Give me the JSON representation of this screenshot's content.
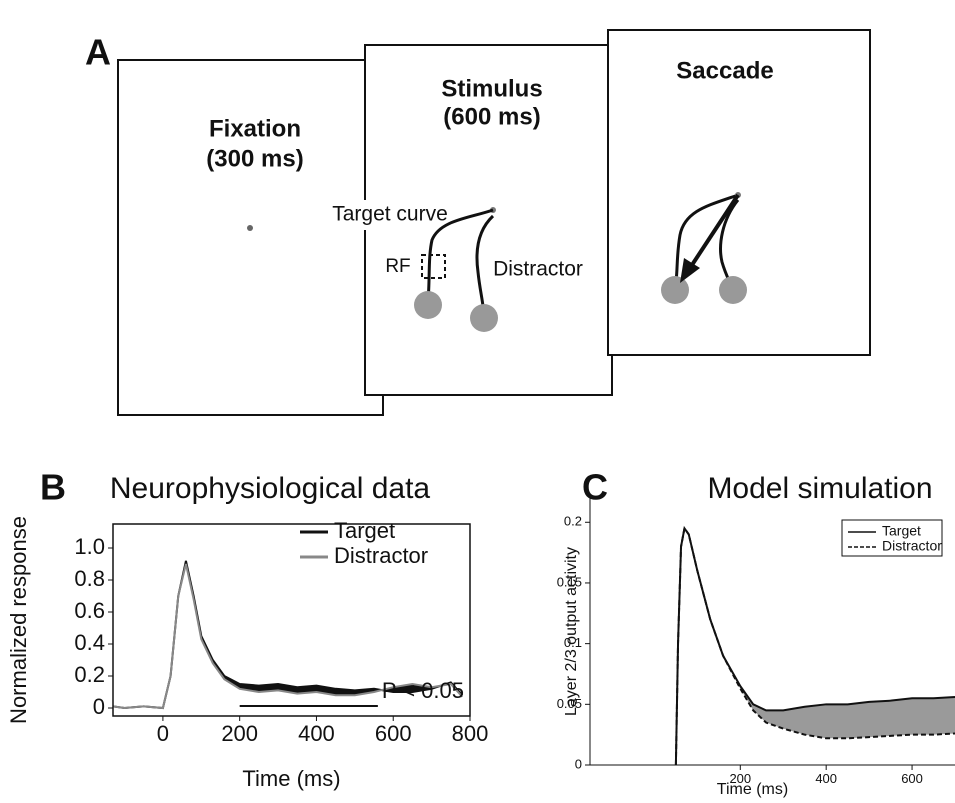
{
  "panel_a": {
    "label": "A",
    "frames": [
      {
        "title": "Fixation",
        "duration": "(300 ms)"
      },
      {
        "title": "Stimulus",
        "duration": "(600 ms)",
        "target": "Target curve",
        "rf": "RF",
        "distractor": "Distractor"
      },
      {
        "title": "Saccade"
      }
    ]
  },
  "chart_data": [
    {
      "type": "line",
      "panel_label": "B",
      "title": "Neurophysiological data",
      "xlabel": "Time (ms)",
      "ylabel": "Normalized response",
      "x": [
        -130,
        -100,
        -50,
        0,
        20,
        40,
        60,
        80,
        100,
        130,
        160,
        200,
        250,
        300,
        350,
        400,
        450,
        500,
        550,
        600,
        650,
        700,
        750,
        780
      ],
      "series": [
        {
          "name": "Target",
          "color": "#111111",
          "dash": false,
          "values": [
            0.01,
            0,
            0.01,
            0,
            0.2,
            0.7,
            0.92,
            0.7,
            0.45,
            0.3,
            0.2,
            0.15,
            0.14,
            0.15,
            0.13,
            0.14,
            0.12,
            0.11,
            0.12,
            0.1,
            0.1,
            0.12,
            0.16,
            0.08
          ]
        },
        {
          "name": "Distractor",
          "color": "#888888",
          "dash": false,
          "values": [
            0.01,
            0,
            0.01,
            0,
            0.2,
            0.7,
            0.9,
            0.68,
            0.43,
            0.28,
            0.18,
            0.12,
            0.1,
            0.11,
            0.09,
            0.1,
            0.08,
            0.08,
            0.1,
            0.13,
            0.15,
            0.13,
            0.15,
            0.07
          ]
        }
      ],
      "band_color": "#111111",
      "annotation": "P < 0.05",
      "significance_range": [
        200,
        560
      ],
      "xlim": [
        -130,
        800
      ],
      "ylim": [
        -0.05,
        1.15
      ],
      "xticks": [
        0,
        200,
        400,
        600,
        800
      ],
      "yticks": [
        0,
        0.2,
        0.4,
        0.6,
        0.8,
        {
          "value": 1,
          "label": "1.0"
        }
      ],
      "legend": "top-right",
      "legend_box": false
    },
    {
      "type": "line",
      "panel_label": "C",
      "title": "Model simulation",
      "xlabel": "Time (ms)",
      "ylabel": "Layer 2/3 output activity",
      "x": [
        50,
        55,
        62,
        70,
        80,
        100,
        130,
        160,
        200,
        230,
        260,
        300,
        350,
        400,
        450,
        500,
        550,
        600,
        650,
        700
      ],
      "series": [
        {
          "name": "Target",
          "color": "#111111",
          "dash": false,
          "values": [
            0,
            0.1,
            0.18,
            0.195,
            0.19,
            0.16,
            0.12,
            0.09,
            0.065,
            0.05,
            0.045,
            0.045,
            0.048,
            0.05,
            0.05,
            0.052,
            0.053,
            0.055,
            0.055,
            0.056
          ]
        },
        {
          "name": "Distractor",
          "color": "#111111",
          "dash": true,
          "values": [
            0,
            0.1,
            0.18,
            0.195,
            0.19,
            0.16,
            0.12,
            0.09,
            0.063,
            0.045,
            0.035,
            0.03,
            0.025,
            0.022,
            0.022,
            0.023,
            0.024,
            0.025,
            0.025,
            0.026
          ]
        }
      ],
      "band_color": "#9a9a9a",
      "xlim": [
        -150,
        700
      ],
      "ylim": [
        0,
        0.22
      ],
      "xticks": [
        200,
        400,
        600
      ],
      "yticks": [
        0,
        0.05,
        0.1,
        0.15,
        0.2
      ],
      "legend": "top-right",
      "legend_box": true
    }
  ]
}
